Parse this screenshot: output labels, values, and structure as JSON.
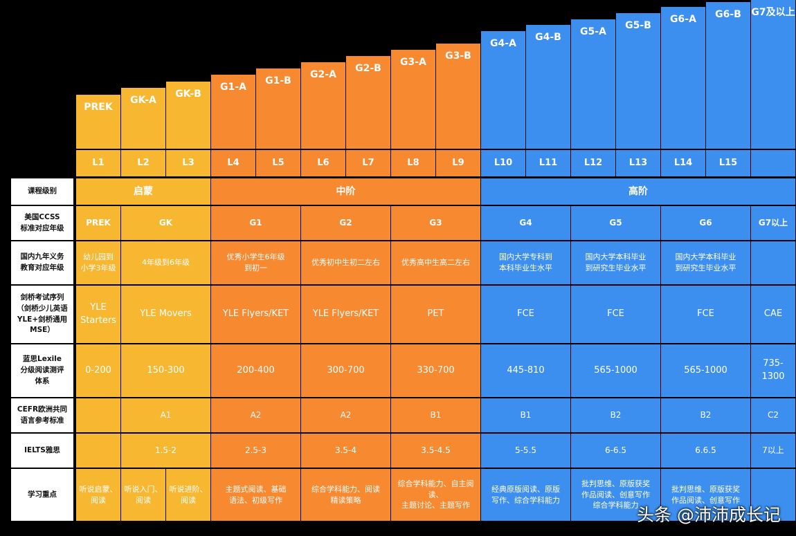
{
  "bars": [
    "PREK",
    "GK-A",
    "GK-B",
    "G1-A",
    "G1-B",
    "G2-A",
    "G2-B",
    "G3-A",
    "G3-B",
    "G4-A",
    "G4-B",
    "G5-A",
    "G5-B",
    "G6-A",
    "G6-B",
    "G7及以上"
  ],
  "levels": [
    "L1",
    "L2",
    "L3",
    "L4",
    "L5",
    "L6",
    "L7",
    "L8",
    "L9",
    "L10",
    "L11",
    "L12",
    "L13",
    "L14",
    "L15",
    ""
  ],
  "row_labels": {
    "course": "课程级别",
    "ccss": "美国CCSS\n标准对应年级",
    "china": "国内九年义务\n教育对应年级",
    "cambridge": "剑桥考试序列\n（剑桥少儿英语\nYLE+剑桥通用\nMSE）",
    "lexile": "蓝思Lexile\n分级阅读测评\n体系",
    "cefr": "CEFR欧洲共同\n语言参考标准",
    "ielts": "IELTS雅思",
    "focus": "学习重点"
  },
  "sections": {
    "beginner": "启蒙",
    "intermediate": "中阶",
    "advanced": "高阶"
  },
  "ccss": [
    "PREK",
    "GK",
    "G1",
    "G2",
    "G3",
    "G4",
    "G5",
    "G6",
    "G7以上"
  ],
  "china": [
    "幼儿园到\n小学3年级",
    "4年级到6年级",
    "优秀小学生6年级\n到初一",
    "优秀初中生初二左右",
    "优秀高中生高二左右",
    "国内大学专科到\n本科毕业生水平",
    "国内大学本科毕业\n到研究生毕业水平",
    "国内大学本科毕业\n到研究生毕业水平",
    ""
  ],
  "cambridge": [
    "YLE\nStarters",
    "YLE Movers",
    "YLE Flyers/KET",
    "YLE Flyers/KET",
    "PET",
    "FCE",
    "FCE",
    "FCE",
    "CAE"
  ],
  "lexile": [
    "0-200",
    "150-300",
    "200-400",
    "300-700",
    "330-700",
    "445-810",
    "565-1000",
    "565-1000",
    "735-\n1300"
  ],
  "cefr": [
    "",
    "A1",
    "A2",
    "A2",
    "B1",
    "B1",
    "B2",
    "B2",
    "C2"
  ],
  "ielts": [
    "",
    "1.5-2",
    "2.5-3",
    "3.5-4",
    "3.5-4.5",
    "5-5.5",
    "6-6.5",
    "6.6.5",
    "7以上"
  ],
  "focus": [
    "听说启蒙、\n阅读",
    "听说入门、\n阅读",
    "听说进阶、\n阅读",
    "主题式阅读、基础\n语法、初级写作",
    "综合学科能力、阅读\n精读策略",
    "综合学科能力、自主阅读、\n主题讨论、主题写作",
    "经典原版阅读、原版\n写作、综合学科能力",
    "批判思维、原版获奖\n作品阅读、创意写作\n综合学科能力",
    "批判思维、原版获奖\n作品阅读、创意写作",
    ""
  ],
  "watermark": "头条 @沛沛成长记",
  "colors": {
    "yellow": "#f7b731",
    "orange": "#f78a30",
    "blue": "#3d8fef",
    "label_bg": "#ffffff",
    "background": "#000000"
  }
}
